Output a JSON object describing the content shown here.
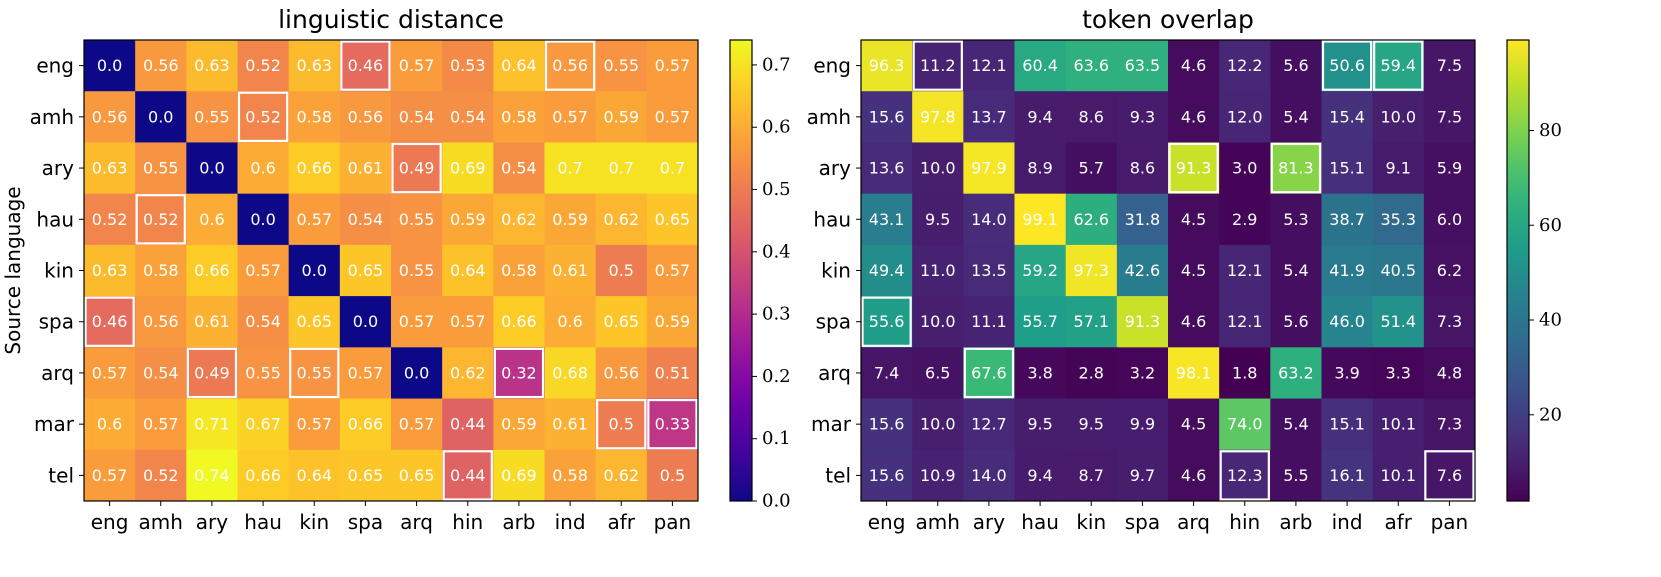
{
  "chart_data": [
    {
      "type": "heatmap",
      "title": "linguistic distance",
      "ylabel": "Source language",
      "xlabel": "",
      "rows": [
        "eng",
        "amh",
        "ary",
        "hau",
        "kin",
        "spa",
        "arq",
        "mar",
        "tel"
      ],
      "cols": [
        "eng",
        "amh",
        "ary",
        "hau",
        "kin",
        "spa",
        "arq",
        "hin",
        "arb",
        "ind",
        "afr",
        "pan"
      ],
      "colormap": "plasma",
      "vmin": 0.0,
      "vmax": 0.74,
      "colorbar_ticks": [
        0.0,
        0.1,
        0.2,
        0.3,
        0.4,
        0.5,
        0.6,
        0.7
      ],
      "values": [
        [
          0.0,
          0.56,
          0.63,
          0.52,
          0.63,
          0.46,
          0.57,
          0.53,
          0.64,
          0.56,
          0.55,
          0.57
        ],
        [
          0.56,
          0.0,
          0.55,
          0.52,
          0.58,
          0.56,
          0.54,
          0.54,
          0.58,
          0.57,
          0.59,
          0.57
        ],
        [
          0.63,
          0.55,
          0.0,
          0.6,
          0.66,
          0.61,
          0.49,
          0.69,
          0.54,
          0.7,
          0.7,
          0.7
        ],
        [
          0.52,
          0.52,
          0.6,
          0.0,
          0.57,
          0.54,
          0.55,
          0.59,
          0.62,
          0.59,
          0.62,
          0.65
        ],
        [
          0.63,
          0.58,
          0.66,
          0.57,
          0.0,
          0.65,
          0.55,
          0.64,
          0.58,
          0.61,
          0.5,
          0.57
        ],
        [
          0.46,
          0.56,
          0.61,
          0.54,
          0.65,
          0.0,
          0.57,
          0.57,
          0.66,
          0.6,
          0.65,
          0.59
        ],
        [
          0.57,
          0.54,
          0.49,
          0.55,
          0.55,
          0.57,
          0.0,
          0.62,
          0.32,
          0.68,
          0.56,
          0.51
        ],
        [
          0.6,
          0.57,
          0.71,
          0.67,
          0.57,
          0.66,
          0.57,
          0.44,
          0.59,
          0.61,
          0.5,
          0.33
        ],
        [
          0.57,
          0.52,
          0.74,
          0.66,
          0.64,
          0.65,
          0.65,
          0.44,
          0.69,
          0.58,
          0.62,
          0.5
        ]
      ],
      "highlighted_cells": [
        [
          0,
          5
        ],
        [
          0,
          9
        ],
        [
          1,
          3
        ],
        [
          2,
          6
        ],
        [
          3,
          1
        ],
        [
          5,
          0
        ],
        [
          6,
          2
        ],
        [
          6,
          4
        ],
        [
          6,
          8
        ],
        [
          7,
          10
        ],
        [
          7,
          11
        ],
        [
          8,
          7
        ]
      ]
    },
    {
      "type": "heatmap",
      "title": "token overlap",
      "ylabel": "",
      "xlabel": "",
      "rows": [
        "eng",
        "amh",
        "ary",
        "hau",
        "kin",
        "spa",
        "arq",
        "mar",
        "tel"
      ],
      "cols": [
        "eng",
        "amh",
        "ary",
        "hau",
        "kin",
        "spa",
        "arq",
        "hin",
        "arb",
        "ind",
        "afr",
        "pan"
      ],
      "colormap": "viridis",
      "vmin": 1.8,
      "vmax": 99.1,
      "colorbar_ticks": [
        20,
        40,
        60,
        80
      ],
      "values": [
        [
          96.3,
          11.2,
          12.1,
          60.4,
          63.6,
          63.5,
          4.6,
          12.2,
          5.6,
          50.6,
          59.4,
          7.5
        ],
        [
          15.6,
          97.8,
          13.7,
          9.4,
          8.6,
          9.3,
          4.6,
          12.0,
          5.4,
          15.4,
          10.0,
          7.5
        ],
        [
          13.6,
          10.0,
          97.9,
          8.9,
          5.7,
          8.6,
          91.3,
          3.0,
          81.3,
          15.1,
          9.1,
          5.9
        ],
        [
          43.1,
          9.5,
          14.0,
          99.1,
          62.6,
          31.8,
          4.5,
          2.9,
          5.3,
          38.7,
          35.3,
          6.0
        ],
        [
          49.4,
          11.0,
          13.5,
          59.2,
          97.3,
          42.6,
          4.5,
          12.1,
          5.4,
          41.9,
          40.5,
          6.2
        ],
        [
          55.6,
          10.0,
          11.1,
          55.7,
          57.1,
          91.3,
          4.6,
          12.1,
          5.6,
          46.0,
          51.4,
          7.3
        ],
        [
          7.4,
          6.5,
          67.6,
          3.8,
          2.8,
          3.2,
          98.1,
          1.8,
          63.2,
          3.9,
          3.3,
          4.8
        ],
        [
          15.6,
          10.0,
          12.7,
          9.5,
          9.5,
          9.9,
          4.5,
          74.0,
          5.4,
          15.1,
          10.1,
          7.3
        ],
        [
          15.6,
          10.9,
          14.0,
          9.4,
          8.7,
          9.7,
          4.6,
          12.3,
          5.5,
          16.1,
          10.1,
          7.6
        ]
      ],
      "highlighted_cells": [
        [
          0,
          1
        ],
        [
          0,
          9
        ],
        [
          0,
          10
        ],
        [
          2,
          6
        ],
        [
          2,
          8
        ],
        [
          5,
          0
        ],
        [
          6,
          2
        ],
        [
          8,
          7
        ],
        [
          8,
          11
        ]
      ]
    }
  ]
}
